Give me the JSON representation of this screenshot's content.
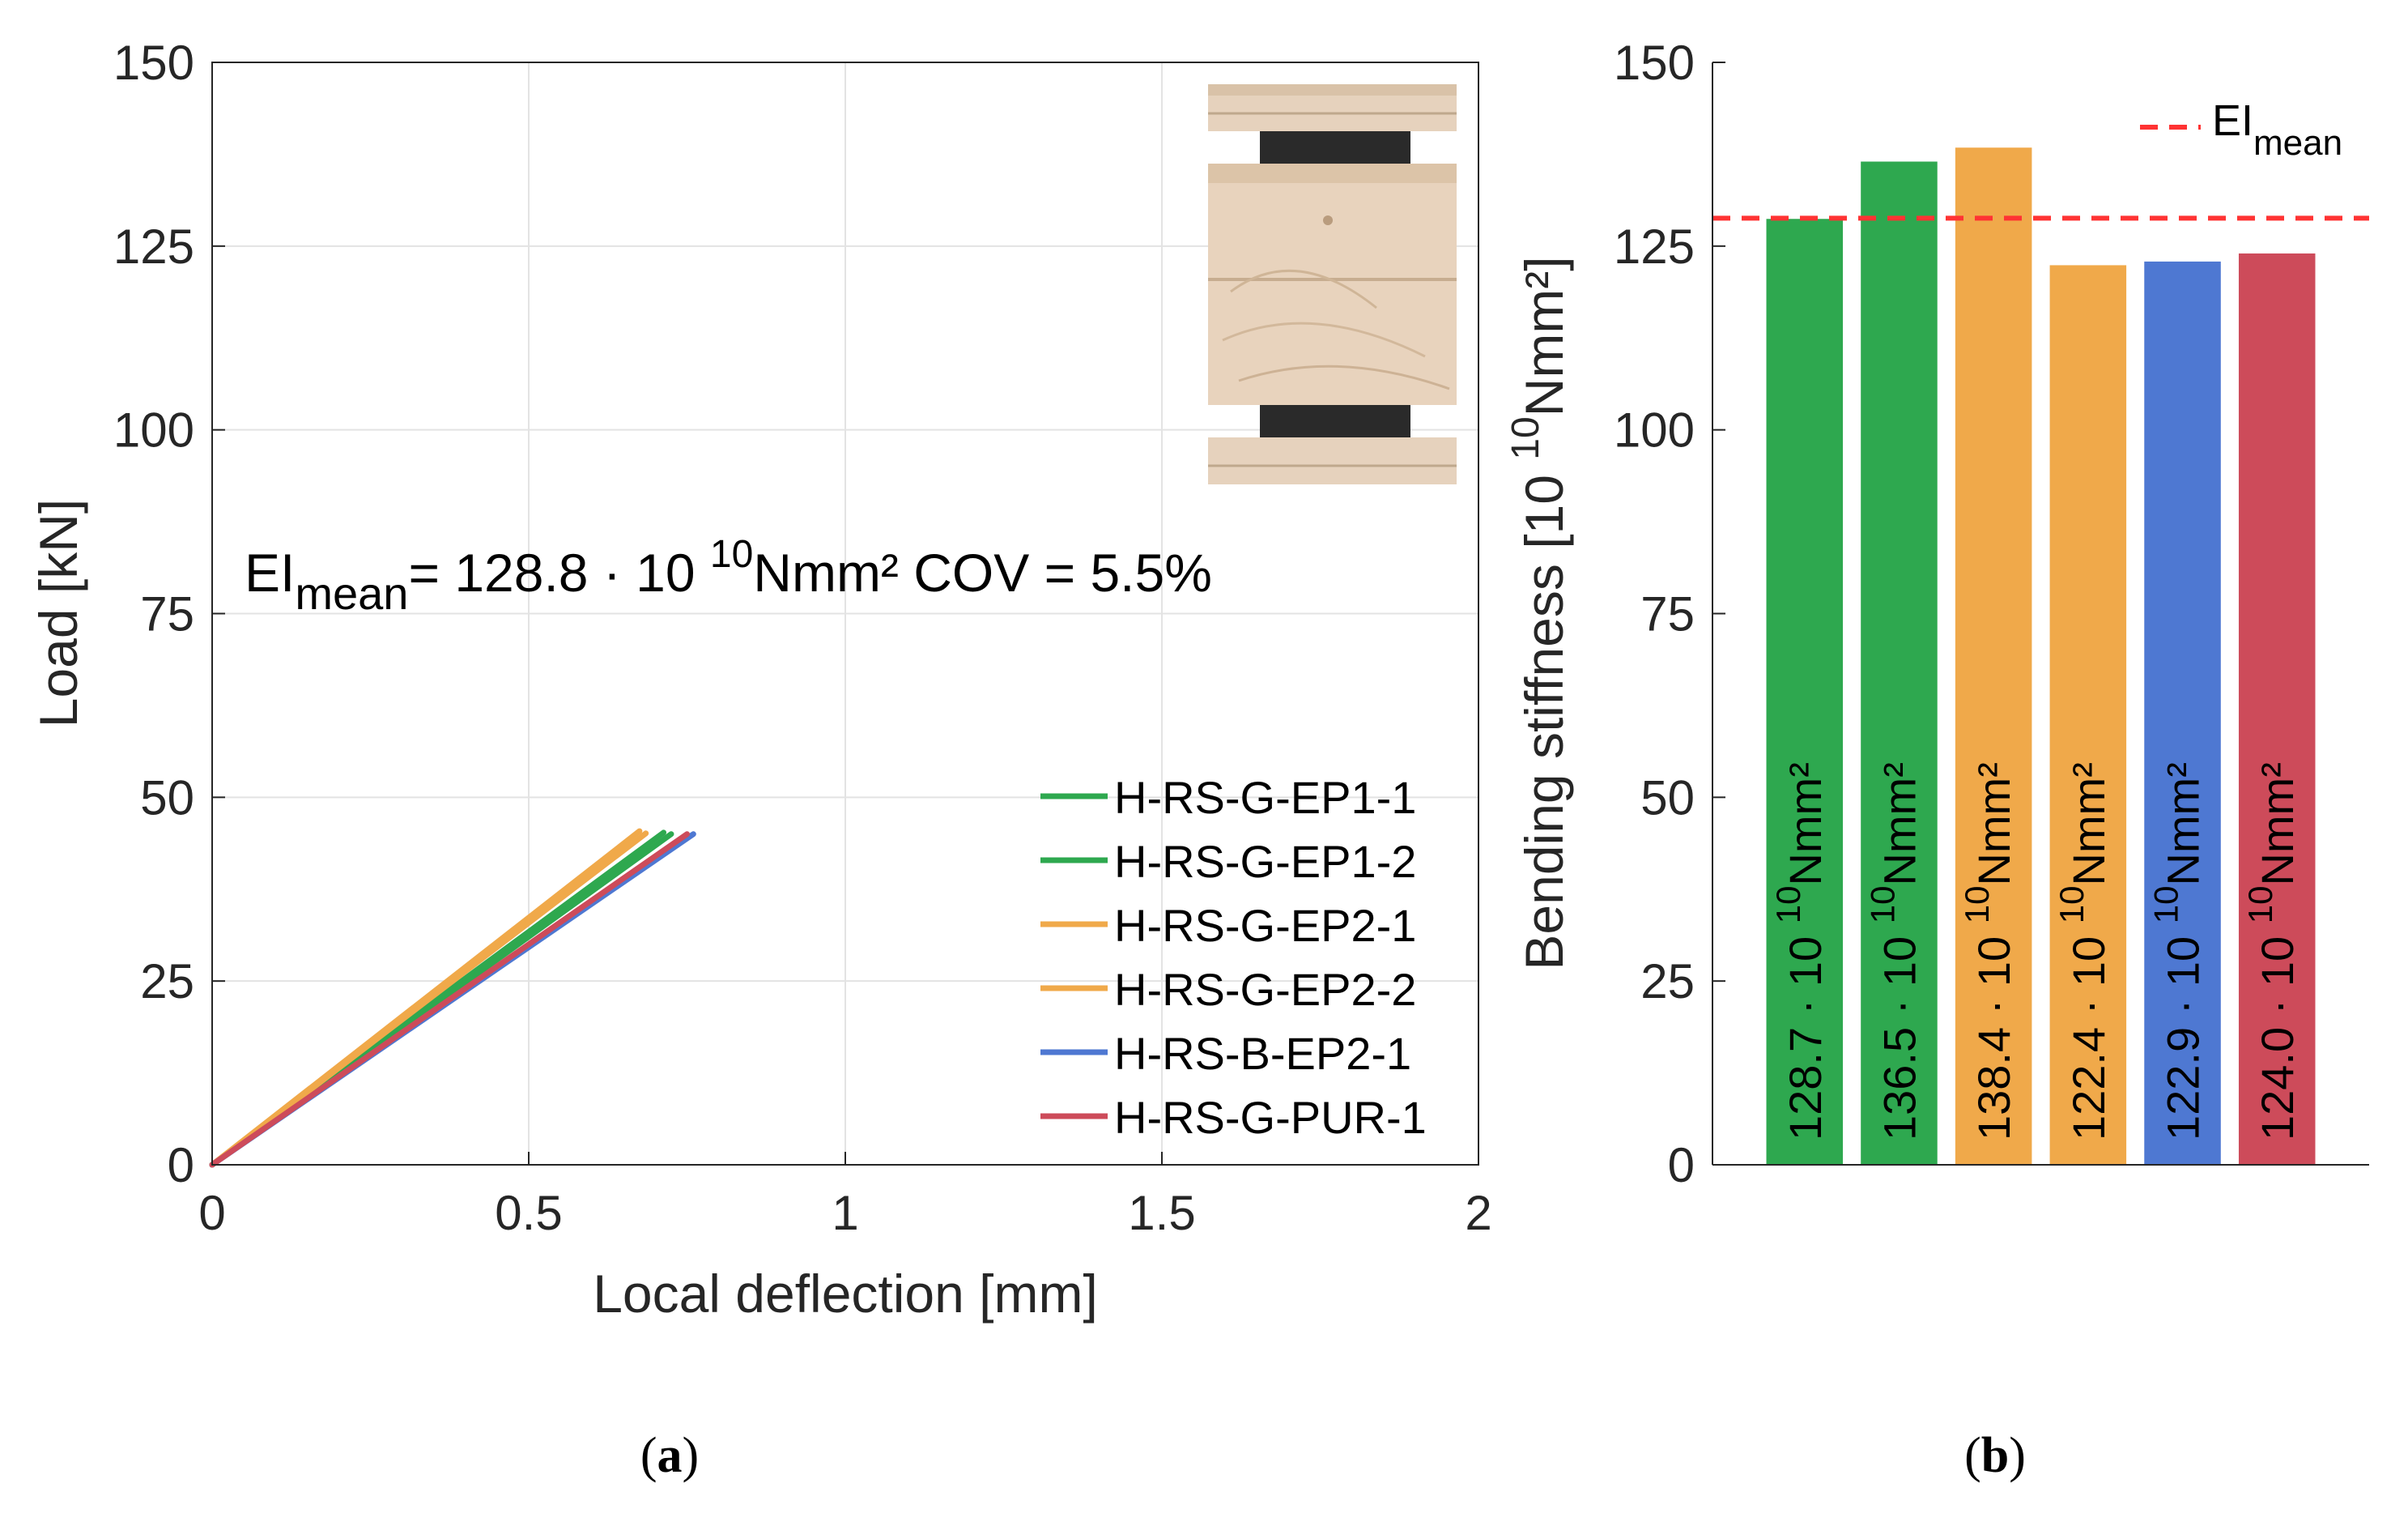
{
  "chart_data": [
    {
      "type": "line",
      "panel_label": "a",
      "xlabel": "Local deflection [mm]",
      "ylabel": "Load [kN]",
      "xlim": [
        0,
        2
      ],
      "ylim": [
        0,
        150
      ],
      "xticks": [
        0,
        0.5,
        1,
        1.5,
        2
      ],
      "xtick_labels": [
        "0",
        "0.5",
        "1",
        "1.5",
        "2"
      ],
      "yticks": [
        0,
        25,
        50,
        75,
        100,
        125,
        150
      ],
      "grid": true,
      "legend_position": "bottom-right",
      "annotation": {
        "main": "EI",
        "sub": "mean",
        "pre": "= 128.8 · 10 ",
        "sup": "10",
        "post": "Nmm² COV = 5.5%"
      },
      "inset_image": "glued beam cross-section photo",
      "series": [
        {
          "name": "H-RS-G-EP1-1",
          "color": "#2ea84f",
          "x": [
            0,
            0.713
          ],
          "y": [
            0,
            45.2
          ]
        },
        {
          "name": "H-RS-G-EP1-2",
          "color": "#2ea84f",
          "x": [
            0,
            0.725
          ],
          "y": [
            0,
            45.0
          ]
        },
        {
          "name": "H-RS-G-EP2-1",
          "color": "#f0a94a",
          "x": [
            0,
            0.675
          ],
          "y": [
            0,
            45.4
          ]
        },
        {
          "name": "H-RS-G-EP2-2",
          "color": "#f0a94a",
          "x": [
            0,
            0.685
          ],
          "y": [
            0,
            45.1
          ]
        },
        {
          "name": "H-RS-B-EP2-1",
          "color": "#4e78d2",
          "x": [
            0,
            0.76
          ],
          "y": [
            0,
            45.0
          ]
        },
        {
          "name": "H-RS-G-PUR-1",
          "color": "#cd4b5a",
          "x": [
            0,
            0.75
          ],
          "y": [
            0,
            45.0
          ]
        }
      ]
    },
    {
      "type": "bar",
      "panel_label": "b",
      "ylabel_pre": "Bending stiffness [10 ",
      "ylabel_sup": "10",
      "ylabel_post": "Nmm²]",
      "ylim": [
        0,
        150
      ],
      "yticks": [
        0,
        25,
        50,
        75,
        100,
        125,
        150
      ],
      "values": [
        128.7,
        136.5,
        138.4,
        122.4,
        122.9,
        124.0
      ],
      "colors": [
        "#2ea84f",
        "#2ea84f",
        "#f0a94a",
        "#f0a94a",
        "#4e78d2",
        "#cd4b5a"
      ],
      "bar_labels": [
        {
          "pre": "128.7 · 10 ",
          "sup": "10",
          "post": "Nmm²"
        },
        {
          "pre": "136.5 · 10 ",
          "sup": "10",
          "post": "Nmm²"
        },
        {
          "pre": "138.4 · 10 ",
          "sup": "10",
          "post": "Nmm²"
        },
        {
          "pre": "122.4 · 10 ",
          "sup": "10",
          "post": "Nmm²"
        },
        {
          "pre": "122.9 · 10 ",
          "sup": "10",
          "post": "Nmm²"
        },
        {
          "pre": "124.0 · 10 ",
          "sup": "10",
          "post": "Nmm²"
        }
      ],
      "mean_line": {
        "value": 128.8,
        "color": "#ff3333",
        "label_main": "EI",
        "label_sub": "mean"
      },
      "legend_position": "top-right"
    }
  ],
  "captions": {
    "a": "a",
    "b": "b"
  }
}
